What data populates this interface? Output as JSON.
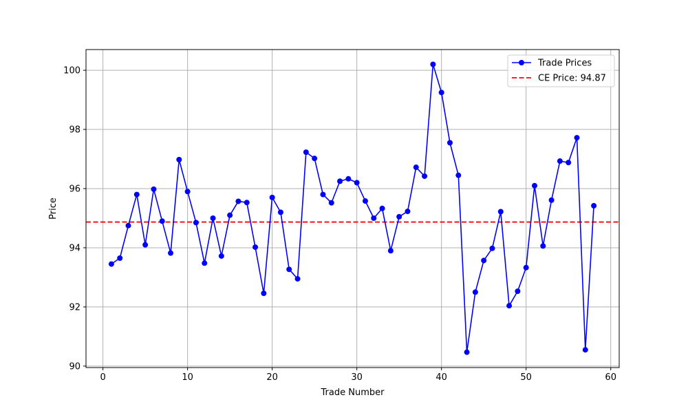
{
  "chart_data": {
    "type": "line",
    "title": "",
    "xlabel": "Trade Number",
    "ylabel": "Price",
    "xlim": [
      -2,
      61
    ],
    "ylim": [
      89.95,
      100.7
    ],
    "grid": true,
    "legend_position": "top-right",
    "xticks": [
      0,
      10,
      20,
      30,
      40,
      50,
      60
    ],
    "yticks": [
      90,
      92,
      94,
      96,
      98,
      100
    ],
    "series": [
      {
        "name": "Trade Prices",
        "color": "#0000ff",
        "marker": "circle",
        "x": [
          1,
          2,
          3,
          4,
          5,
          6,
          7,
          8,
          9,
          10,
          11,
          12,
          13,
          14,
          15,
          16,
          17,
          18,
          19,
          20,
          21,
          22,
          23,
          24,
          25,
          26,
          27,
          28,
          29,
          30,
          31,
          32,
          33,
          34,
          35,
          36,
          37,
          38,
          39,
          40,
          41,
          42,
          43,
          44,
          45,
          46,
          47,
          48,
          49,
          50,
          51,
          52,
          53,
          54,
          55,
          56,
          57,
          58
        ],
        "values": [
          93.45,
          93.65,
          94.75,
          95.8,
          94.1,
          95.98,
          94.9,
          93.82,
          96.98,
          95.9,
          94.85,
          93.48,
          95.0,
          93.72,
          95.1,
          95.57,
          95.53,
          94.02,
          92.46,
          95.7,
          95.2,
          93.27,
          92.95,
          97.23,
          97.02,
          95.8,
          95.52,
          96.25,
          96.33,
          96.2,
          95.58,
          95.0,
          95.33,
          93.9,
          95.05,
          95.23,
          96.72,
          96.42,
          100.2,
          99.25,
          97.55,
          96.45,
          90.47,
          92.5,
          93.57,
          93.98,
          95.22,
          92.04,
          92.53,
          93.33,
          96.1,
          94.06,
          95.61,
          96.93,
          96.88,
          97.72,
          90.55,
          95.42
        ]
      }
    ],
    "reference_lines": [
      {
        "name": "CE Price: 94.87",
        "value": 94.87,
        "color": "#ff0000",
        "style": "dashed"
      }
    ],
    "legend": [
      "Trade Prices",
      "CE Price: 94.87"
    ]
  }
}
